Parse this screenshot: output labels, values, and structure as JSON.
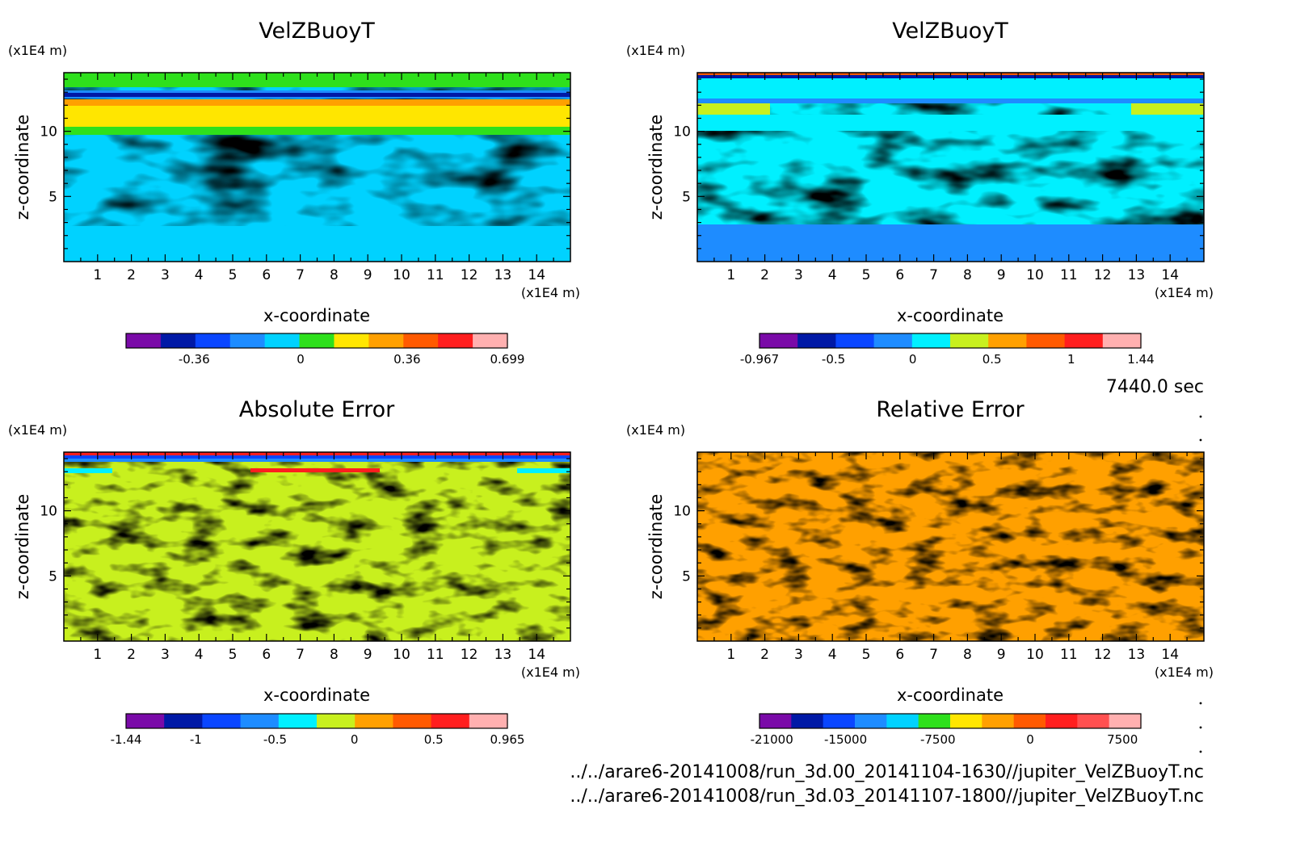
{
  "time_label": "7440.0 sec",
  "footer": {
    "line1": "../../arare6-20141008/run_3d.00_20141104-1630//jupiter_VelZBuoyT.nc",
    "line2": "../../arare6-20141008/run_3d.03_20141107-1800//jupiter_VelZBuoyT.nc"
  },
  "chart_data": [
    {
      "type": "heatmap",
      "title": "VelZBuoyT",
      "xlabel": "x-coordinate",
      "ylabel": "z-coordinate",
      "xunit": "(x1E4 m)",
      "yunit": "(x1E4 m)",
      "xlim": [
        0,
        15
      ],
      "ylim": [
        0,
        14.5
      ],
      "xticks": [
        "1",
        "2",
        "3",
        "4",
        "5",
        "6",
        "7",
        "8",
        "9",
        "10",
        "11",
        "12",
        "13",
        "14"
      ],
      "yticks": [
        "5",
        "10"
      ],
      "colorbar": {
        "colors": [
          "#7a0aa8",
          "#0019a6",
          "#0a46ff",
          "#1e8cff",
          "#00d2ff",
          "#2ee01c",
          "#ffe600",
          "#ffa000",
          "#ff5a00",
          "#ff1e1e",
          "#ffb0b0"
        ],
        "ticks": [
          "-0.36",
          "0",
          "0.36",
          "0.699"
        ],
        "tick_values": [
          -0.36,
          0,
          0.36,
          0.699
        ],
        "range": [
          -0.59,
          0.699
        ]
      }
    },
    {
      "type": "heatmap",
      "title": "VelZBuoyT",
      "xlabel": "x-coordinate",
      "ylabel": "z-coordinate",
      "xunit": "(x1E4 m)",
      "yunit": "(x1E4 m)",
      "xlim": [
        0,
        15
      ],
      "ylim": [
        0,
        14.5
      ],
      "xticks": [
        "1",
        "2",
        "3",
        "4",
        "5",
        "6",
        "7",
        "8",
        "9",
        "10",
        "11",
        "12",
        "13",
        "14"
      ],
      "yticks": [
        "5",
        "10"
      ],
      "colorbar": {
        "colors": [
          "#7a0aa8",
          "#0019a6",
          "#0a46ff",
          "#1e8cff",
          "#00f0ff",
          "#c8f01e",
          "#ffa000",
          "#ff5a00",
          "#ff1e1e",
          "#ffb0b0"
        ],
        "ticks": [
          "-0.967",
          "-0.5",
          "0",
          "0.5",
          "1",
          "1.44"
        ],
        "tick_values": [
          -0.967,
          -0.5,
          0,
          0.5,
          1,
          1.44
        ],
        "range": [
          -0.967,
          1.44
        ]
      }
    },
    {
      "type": "heatmap",
      "title": "Absolute Error",
      "xlabel": "x-coordinate",
      "ylabel": "z-coordinate",
      "xunit": "(x1E4 m)",
      "yunit": "(x1E4 m)",
      "xlim": [
        0,
        15
      ],
      "ylim": [
        0,
        14.5
      ],
      "xticks": [
        "1",
        "2",
        "3",
        "4",
        "5",
        "6",
        "7",
        "8",
        "9",
        "10",
        "11",
        "12",
        "13",
        "14"
      ],
      "yticks": [
        "5",
        "10"
      ],
      "colorbar": {
        "colors": [
          "#7a0aa8",
          "#0019a6",
          "#0a46ff",
          "#1e8cff",
          "#00f0ff",
          "#c8f01e",
          "#ffa000",
          "#ff5a00",
          "#ff1e1e",
          "#ffb0b0"
        ],
        "ticks": [
          "-1.44",
          "-1",
          "-0.5",
          "0",
          "0.5",
          "0.965"
        ],
        "tick_values": [
          -1.44,
          -1,
          -0.5,
          0,
          0.5,
          0.965
        ],
        "range": [
          -1.44,
          0.965
        ]
      }
    },
    {
      "type": "heatmap",
      "title": "Relative Error",
      "xlabel": "x-coordinate",
      "ylabel": "z-coordinate",
      "xunit": "(x1E4 m)",
      "yunit": "(x1E4 m)",
      "xlim": [
        0,
        15
      ],
      "ylim": [
        0,
        14.5
      ],
      "xticks": [
        "1",
        "2",
        "3",
        "4",
        "5",
        "6",
        "7",
        "8",
        "9",
        "10",
        "11",
        "12",
        "13",
        "14"
      ],
      "yticks": [
        "5",
        "10"
      ],
      "colorbar": {
        "colors": [
          "#7a0aa8",
          "#0019a6",
          "#0a46ff",
          "#1e8cff",
          "#00d2ff",
          "#2ee01c",
          "#ffe600",
          "#ffa000",
          "#ff5a00",
          "#ff1e1e",
          "#ff5050",
          "#ffb0b0"
        ],
        "ticks": [
          "-21000",
          "-15000",
          "-7500",
          "0",
          "7500"
        ],
        "tick_values": [
          -21000,
          -15000,
          -7500,
          0,
          7500
        ],
        "range": [
          -22000,
          9000
        ]
      }
    }
  ]
}
